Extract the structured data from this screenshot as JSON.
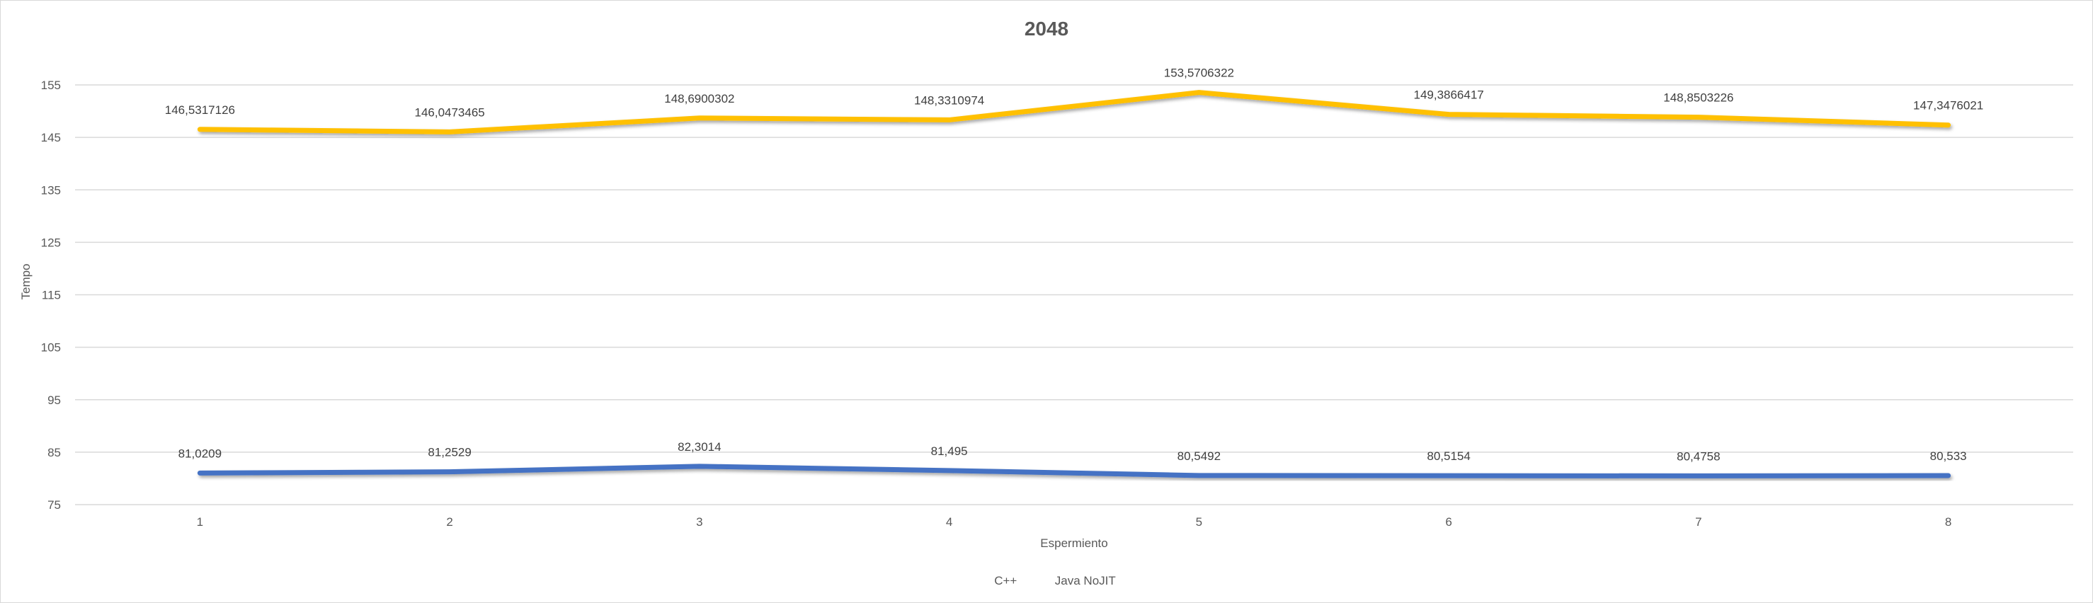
{
  "chart_data": {
    "type": "line",
    "title": "2048",
    "xlabel": "Espermiento",
    "ylabel": "Tempo",
    "categories": [
      "1",
      "2",
      "3",
      "4",
      "5",
      "6",
      "7",
      "8"
    ],
    "ylim": [
      75,
      155
    ],
    "yticks": [
      75,
      85,
      95,
      105,
      115,
      125,
      135,
      145,
      155
    ],
    "grid": true,
    "legend_position": "bottom",
    "series": [
      {
        "name": "C++",
        "color": "#4472c4",
        "values": [
          81.0209,
          81.2529,
          82.3014,
          81.495,
          80.5492,
          80.5154,
          80.4758,
          80.533
        ],
        "labels": [
          "81,0209",
          "81,2529",
          "82,3014",
          "81,495",
          "80,5492",
          "80,5154",
          "80,4758",
          "80,533"
        ]
      },
      {
        "name": "Java NoJIT",
        "color": "#ffc000",
        "values": [
          146.5317126,
          146.0473465,
          148.6900302,
          148.3310974,
          153.5706322,
          149.3866417,
          148.8503226,
          147.3476021
        ],
        "labels": [
          "146,5317126",
          "146,0473465",
          "148,6900302",
          "148,3310974",
          "153,5706322",
          "149,3866417",
          "148,8503226",
          "147,3476021"
        ]
      }
    ]
  }
}
